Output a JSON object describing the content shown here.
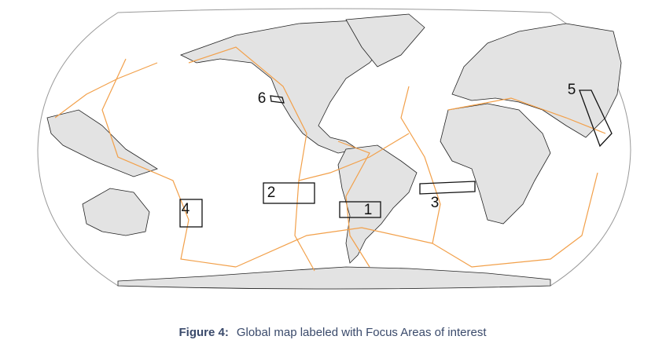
{
  "map": {
    "focus_areas": [
      {
        "label": "1"
      },
      {
        "label": "2"
      },
      {
        "label": "3"
      },
      {
        "label": "4"
      },
      {
        "label": "5"
      },
      {
        "label": "6"
      }
    ]
  },
  "caption": {
    "prefix": "Figure 4:",
    "text": "Global map labeled with Focus Areas of interest"
  }
}
